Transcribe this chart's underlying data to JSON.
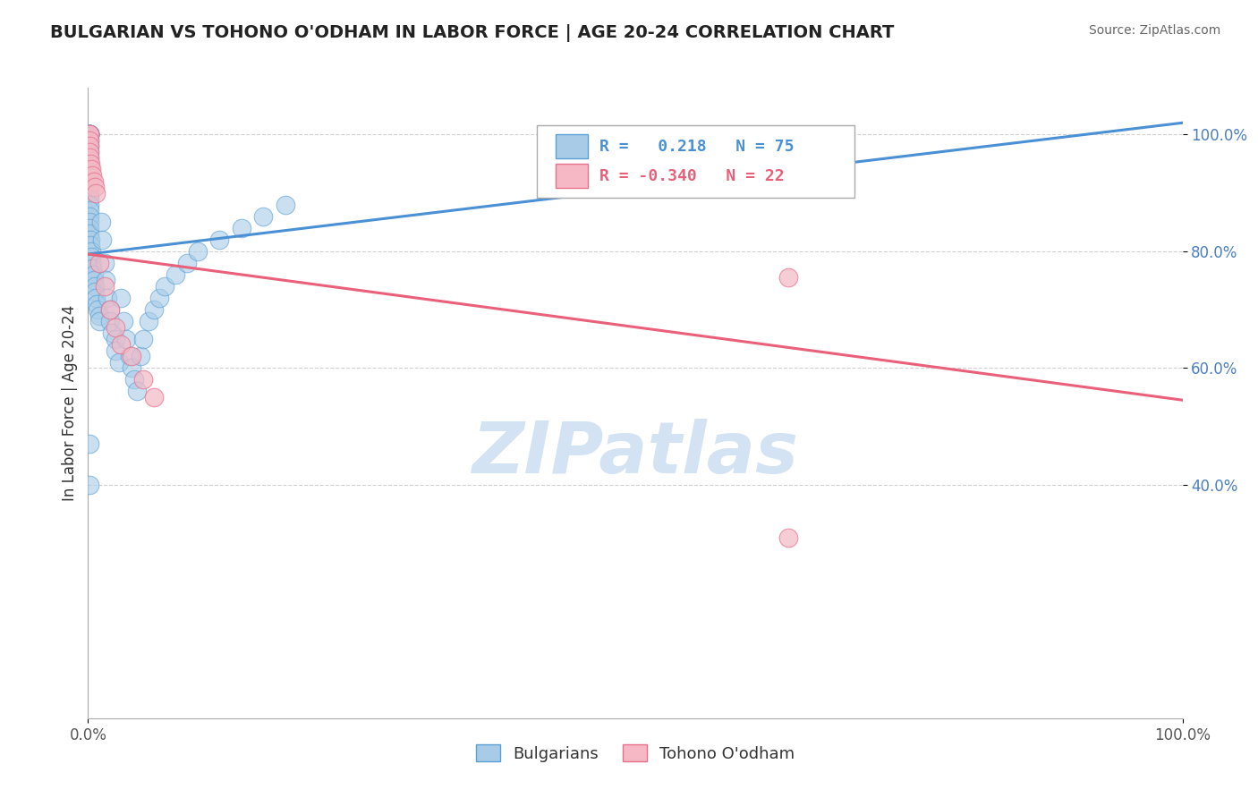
{
  "title": "BULGARIAN VS TOHONO O'ODHAM IN LABOR FORCE | AGE 20-24 CORRELATION CHART",
  "source": "Source: ZipAtlas.com",
  "ylabel": "In Labor Force | Age 20-24",
  "xmin": 0.0,
  "xmax": 1.0,
  "ymin": 0.0,
  "ymax": 1.08,
  "yticks": [
    0.4,
    0.6,
    0.8,
    1.0
  ],
  "yticklabels": [
    "40.0%",
    "60.0%",
    "80.0%",
    "100.0%"
  ],
  "legend_blue_r": " 0.218",
  "legend_blue_n": "75",
  "legend_pink_r": "-0.340",
  "legend_pink_n": "22",
  "blue_fill": "#a8cce8",
  "blue_edge": "#5a9fd4",
  "pink_fill": "#f5b8c4",
  "pink_edge": "#e8708a",
  "line_blue_color": "#4a90d4",
  "line_pink_color": "#e8607a",
  "watermark_color": "#c8ddf0",
  "bg_color": "#ffffff",
  "grid_color": "#cccccc",
  "blue_trendline_x": [
    0.0,
    1.0
  ],
  "blue_trendline_y": [
    0.795,
    1.02
  ],
  "pink_trendline_x": [
    0.0,
    1.0
  ],
  "pink_trendline_y": [
    0.795,
    0.545
  ],
  "blue_x": [
    0.001,
    0.001,
    0.001,
    0.001,
    0.001,
    0.001,
    0.001,
    0.001,
    0.001,
    0.001,
    0.001,
    0.001,
    0.001,
    0.001,
    0.001,
    0.001,
    0.001,
    0.001,
    0.001,
    0.001,
    0.001,
    0.001,
    0.001,
    0.001,
    0.001,
    0.001,
    0.001,
    0.002,
    0.002,
    0.003,
    0.003,
    0.004,
    0.004,
    0.005,
    0.005,
    0.006,
    0.006,
    0.007,
    0.008,
    0.009,
    0.01,
    0.01,
    0.012,
    0.013,
    0.015,
    0.016,
    0.018,
    0.02,
    0.02,
    0.022,
    0.025,
    0.025,
    0.028,
    0.03,
    0.032,
    0.035,
    0.038,
    0.04,
    0.042,
    0.045,
    0.048,
    0.05,
    0.055,
    0.06,
    0.065,
    0.07,
    0.08,
    0.09,
    0.1,
    0.12,
    0.14,
    0.16,
    0.18,
    0.001,
    0.001
  ],
  "blue_y": [
    1.0,
    1.0,
    1.0,
    1.0,
    1.0,
    1.0,
    1.0,
    1.0,
    1.0,
    1.0,
    0.99,
    0.98,
    0.97,
    0.96,
    0.95,
    0.94,
    0.93,
    0.92,
    0.91,
    0.9,
    0.89,
    0.88,
    0.87,
    0.86,
    0.85,
    0.84,
    0.83,
    0.82,
    0.81,
    0.8,
    0.79,
    0.78,
    0.77,
    0.76,
    0.75,
    0.74,
    0.73,
    0.72,
    0.71,
    0.7,
    0.69,
    0.68,
    0.85,
    0.82,
    0.78,
    0.75,
    0.72,
    0.7,
    0.68,
    0.66,
    0.65,
    0.63,
    0.61,
    0.72,
    0.68,
    0.65,
    0.62,
    0.6,
    0.58,
    0.56,
    0.62,
    0.65,
    0.68,
    0.7,
    0.72,
    0.74,
    0.76,
    0.78,
    0.8,
    0.82,
    0.84,
    0.86,
    0.88,
    0.47,
    0.4
  ],
  "pink_x": [
    0.001,
    0.001,
    0.001,
    0.001,
    0.001,
    0.001,
    0.002,
    0.003,
    0.004,
    0.005,
    0.006,
    0.007,
    0.01,
    0.015,
    0.02,
    0.025,
    0.03,
    0.04,
    0.05,
    0.06,
    0.64,
    0.64
  ],
  "pink_y": [
    1.0,
    1.0,
    0.99,
    0.98,
    0.97,
    0.96,
    0.95,
    0.94,
    0.93,
    0.92,
    0.91,
    0.9,
    0.78,
    0.74,
    0.7,
    0.67,
    0.64,
    0.62,
    0.58,
    0.55,
    0.755,
    0.31
  ]
}
